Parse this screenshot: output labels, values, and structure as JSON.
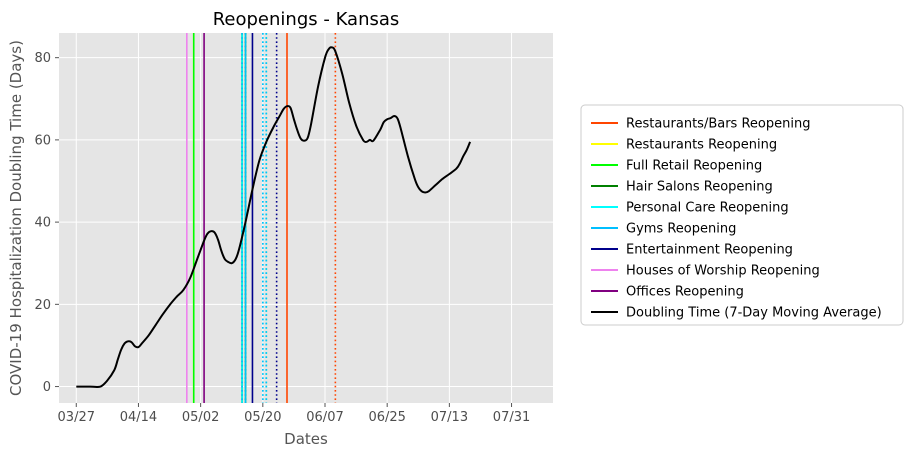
{
  "chart_data": {
    "type": "line",
    "title": "Reopenings - Kansas",
    "xlabel": "Dates",
    "ylabel": "COVID-19 Hospitalization Doubling Time (Days)",
    "x_axis_unit": "day of year (2020)",
    "xlim": [
      82,
      225
    ],
    "ylim": [
      -4,
      86
    ],
    "xtick_values": [
      87,
      105,
      123,
      141,
      159,
      177,
      195,
      213
    ],
    "xtick_labels": [
      "03/27",
      "04/14",
      "05/02",
      "05/20",
      "06/07",
      "06/25",
      "07/13",
      "07/31"
    ],
    "ytick_values": [
      0,
      20,
      40,
      60,
      80
    ],
    "ytick_labels": [
      "0",
      "20",
      "40",
      "60",
      "80"
    ],
    "grid": true,
    "legend_position": "outside-right",
    "series": [
      {
        "name": "Doubling Time (7-Day Moving Average)",
        "color": "#000000",
        "points": [
          [
            87,
            0
          ],
          [
            89,
            0
          ],
          [
            91,
            0
          ],
          [
            94,
            0
          ],
          [
            96,
            1.5
          ],
          [
            98,
            4
          ],
          [
            99,
            6.5
          ],
          [
            100,
            9
          ],
          [
            101,
            10.5
          ],
          [
            102,
            11
          ],
          [
            103,
            10.8
          ],
          [
            104,
            9.8
          ],
          [
            105,
            9.6
          ],
          [
            106,
            10.5
          ],
          [
            108,
            12.5
          ],
          [
            110,
            15
          ],
          [
            112,
            17.5
          ],
          [
            114,
            19.8
          ],
          [
            116,
            21.8
          ],
          [
            118,
            23.5
          ],
          [
            120,
            26.5
          ],
          [
            122,
            31
          ],
          [
            124,
            35.5
          ],
          [
            125,
            37.2
          ],
          [
            126,
            37.8
          ],
          [
            127,
            37.5
          ],
          [
            128,
            35.8
          ],
          [
            129,
            33
          ],
          [
            130,
            31
          ],
          [
            131,
            30.3
          ],
          [
            132,
            30
          ],
          [
            133,
            30.8
          ],
          [
            134,
            33
          ],
          [
            136,
            40
          ],
          [
            138,
            48
          ],
          [
            140,
            55
          ],
          [
            142,
            59.5
          ],
          [
            144,
            63
          ],
          [
            146,
            66
          ],
          [
            147,
            67.5
          ],
          [
            148,
            68.2
          ],
          [
            149,
            67.8
          ],
          [
            150,
            65
          ],
          [
            151,
            62.3
          ],
          [
            152,
            60.3
          ],
          [
            153,
            59.8
          ],
          [
            154,
            60.5
          ],
          [
            155,
            64
          ],
          [
            157,
            73
          ],
          [
            159,
            80
          ],
          [
            160,
            82
          ],
          [
            161,
            82.5
          ],
          [
            162,
            81.5
          ],
          [
            164,
            76
          ],
          [
            166,
            69
          ],
          [
            168,
            63.5
          ],
          [
            170,
            60
          ],
          [
            171,
            59.5
          ],
          [
            172,
            60
          ],
          [
            173,
            59.8
          ],
          [
            175,
            62.5
          ],
          [
            176,
            64.3
          ],
          [
            177,
            65
          ],
          [
            178,
            65.3
          ],
          [
            179,
            65.8
          ],
          [
            180,
            65.2
          ],
          [
            181,
            62.5
          ],
          [
            183,
            56
          ],
          [
            185,
            50.5
          ],
          [
            186,
            48.5
          ],
          [
            187,
            47.5
          ],
          [
            188,
            47.2
          ],
          [
            189,
            47.5
          ],
          [
            191,
            49
          ],
          [
            193,
            50.5
          ],
          [
            195,
            51.7
          ],
          [
            197,
            53
          ],
          [
            198,
            54.2
          ],
          [
            199,
            56
          ],
          [
            200,
            57.5
          ],
          [
            201,
            59.5
          ]
        ]
      }
    ],
    "reopenings": [
      {
        "name": "Restaurants/Bars Reopening",
        "color": "#ff4500",
        "dates": [
          148,
          162
        ],
        "styles": [
          "solid",
          "dotted"
        ]
      },
      {
        "name": "Restaurants Reopening",
        "color": "#ffff00",
        "dates": [
          121
        ],
        "styles": [
          "solid"
        ]
      },
      {
        "name": "Full Retail Reopening",
        "color": "#00ff00",
        "dates": [
          121,
          136,
          142
        ],
        "styles": [
          "solid",
          "solid",
          "dotted"
        ]
      },
      {
        "name": "Hair Salons Reopening",
        "color": "#008000",
        "dates": [
          135,
          136
        ],
        "styles": [
          "solid",
          "dotted"
        ]
      },
      {
        "name": "Personal Care Reopening",
        "color": "#00ffff",
        "dates": [
          135,
          141,
          142
        ],
        "styles": [
          "solid",
          "dotted",
          "dotted"
        ]
      },
      {
        "name": "Gyms Reopening",
        "color": "#00bfff",
        "dates": [
          135,
          136,
          141,
          142
        ],
        "styles": [
          "dotted",
          "solid",
          "dotted",
          "dotted"
        ]
      },
      {
        "name": "Entertainment Reopening",
        "color": "#00008b",
        "dates": [
          138,
          145
        ],
        "styles": [
          "solid",
          "dotted"
        ]
      },
      {
        "name": "Houses of Worship Reopening",
        "color": "#ee82ee",
        "dates": [
          119
        ],
        "styles": [
          "solid"
        ]
      },
      {
        "name": "Offices Reopening",
        "color": "#800080",
        "dates": [
          124
        ],
        "styles": [
          "solid"
        ]
      }
    ],
    "legend_entries": [
      {
        "label": "Restaurants/Bars Reopening",
        "color": "#ff4500"
      },
      {
        "label": "Restaurants Reopening",
        "color": "#ffff00"
      },
      {
        "label": "Full Retail Reopening",
        "color": "#00ff00"
      },
      {
        "label": "Hair Salons Reopening",
        "color": "#008000"
      },
      {
        "label": "Personal Care Reopening",
        "color": "#00ffff"
      },
      {
        "label": "Gyms Reopening",
        "color": "#00bfff"
      },
      {
        "label": "Entertainment Reopening",
        "color": "#00008b"
      },
      {
        "label": "Houses of Worship Reopening",
        "color": "#ee82ee"
      },
      {
        "label": "Offices Reopening",
        "color": "#800080"
      },
      {
        "label": "Doubling Time (7-Day Moving Average)",
        "color": "#000000"
      }
    ]
  }
}
